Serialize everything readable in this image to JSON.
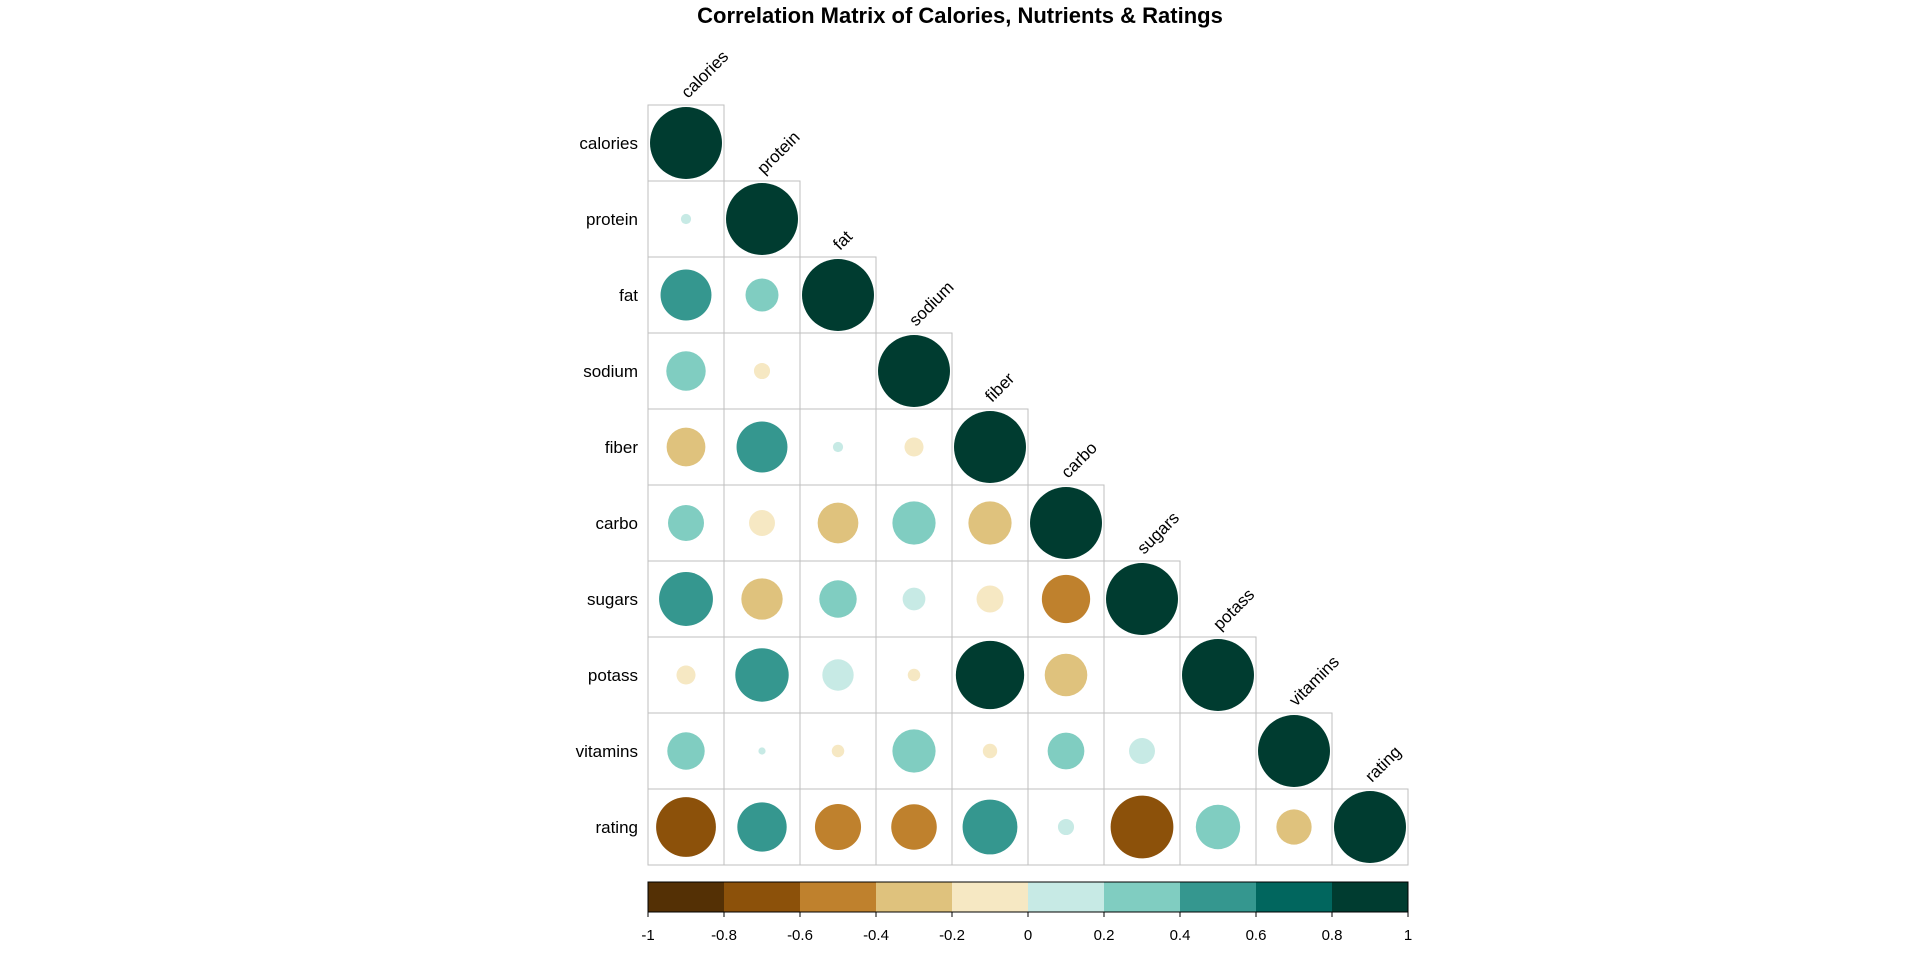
{
  "chart_data": {
    "type": "heatmap",
    "title": "Correlation Matrix of Calories, Nutrients & Ratings",
    "variables": [
      "calories",
      "protein",
      "fat",
      "sodium",
      "fiber",
      "carbo",
      "sugars",
      "potass",
      "vitamins",
      "rating"
    ],
    "matrix": [
      [
        1.0,
        0.02,
        0.5,
        0.3,
        -0.29,
        0.25,
        0.56,
        -0.07,
        0.27,
        -0.69
      ],
      [
        0.02,
        1.0,
        0.21,
        -0.05,
        0.5,
        -0.13,
        -0.33,
        0.55,
        0.01,
        0.47
      ],
      [
        0.5,
        0.21,
        1.0,
        0.0,
        0.02,
        -0.32,
        0.27,
        0.19,
        -0.03,
        -0.41
      ],
      [
        0.3,
        -0.05,
        0.0,
        1.0,
        -0.07,
        0.36,
        0.1,
        -0.03,
        0.36,
        -0.4
      ],
      [
        -0.29,
        0.5,
        0.02,
        -0.07,
        1.0,
        -0.36,
        -0.14,
        0.9,
        -0.04,
        0.58
      ],
      [
        0.25,
        -0.13,
        -0.32,
        0.36,
        -0.36,
        1.0,
        -0.45,
        -0.35,
        0.26,
        0.05
      ],
      [
        0.56,
        -0.33,
        0.27,
        0.1,
        -0.14,
        -0.45,
        1.0,
        0.0,
        0.13,
        -0.76
      ],
      [
        -0.07,
        0.55,
        0.19,
        -0.03,
        0.9,
        -0.35,
        0.0,
        1.0,
        0.0,
        0.38
      ],
      [
        0.27,
        0.01,
        -0.03,
        0.36,
        -0.04,
        0.26,
        0.13,
        0.0,
        1.0,
        -0.24
      ],
      [
        -0.69,
        0.47,
        -0.41,
        -0.4,
        0.58,
        0.05,
        -0.76,
        0.38,
        -0.24,
        1.0
      ]
    ],
    "colorbar": {
      "ticks": [
        "-1",
        "-0.8",
        "-0.6",
        "-0.4",
        "-0.2",
        "0",
        "0.2",
        "0.4",
        "0.6",
        "0.8",
        "1"
      ],
      "colors": [
        "#543005",
        "#8C510A",
        "#BF812D",
        "#DFC27D",
        "#F6E8C3",
        "#C7EAE5",
        "#80CDC1",
        "#35978F",
        "#01665E",
        "#003C30"
      ]
    }
  }
}
